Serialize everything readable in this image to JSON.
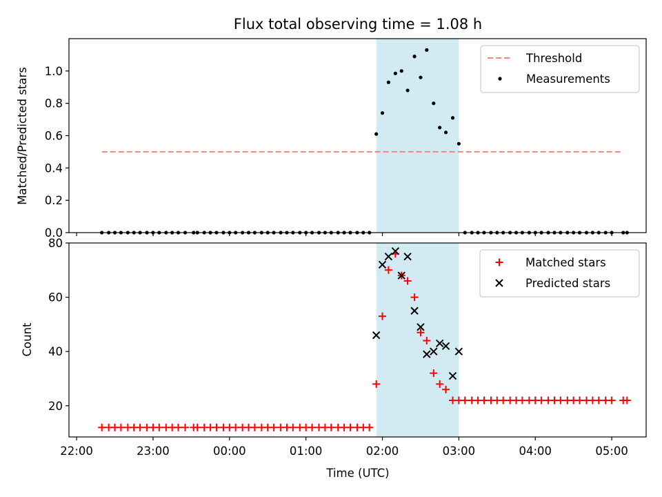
{
  "chart_data": {
    "title": "Flux total observing time = 1.08 h",
    "xlabel": "Time (UTC)",
    "x_unit": "hours relative to 00:00 UTC",
    "xlim": [
      -2.1,
      5.45
    ],
    "x_ticks": [
      {
        "value": -2,
        "label": "22:00"
      },
      {
        "value": -1,
        "label": "23:00"
      },
      {
        "value": 0,
        "label": "00:00"
      },
      {
        "value": 1,
        "label": "01:00"
      },
      {
        "value": 2,
        "label": "02:00"
      },
      {
        "value": 3,
        "label": "03:00"
      },
      {
        "value": 4,
        "label": "04:00"
      },
      {
        "value": 5,
        "label": "05:00"
      }
    ],
    "shaded_interval": [
      1.92,
      3.0
    ],
    "shade_color": "#add8e6",
    "panels": [
      {
        "type": "scatter",
        "ylabel": "Matched/Predicted stars",
        "ylim": [
          0,
          1.2
        ],
        "y_ticks": [
          0.0,
          0.2,
          0.4,
          0.6,
          0.8,
          1.0
        ],
        "threshold": {
          "name": "Threshold",
          "value": 0.5,
          "x_range": [
            -1.67,
            5.15
          ],
          "color": "#ff7f7f"
        },
        "series": [
          {
            "name": "Measurements",
            "color": "#000000",
            "points": [
              [
                -1.67,
                0
              ],
              [
                -1.58,
                0
              ],
              [
                -1.5,
                0
              ],
              [
                -1.42,
                0
              ],
              [
                -1.33,
                0
              ],
              [
                -1.25,
                0
              ],
              [
                -1.17,
                0
              ],
              [
                -1.08,
                0
              ],
              [
                -1.0,
                0
              ],
              [
                -0.92,
                0
              ],
              [
                -0.83,
                0
              ],
              [
                -0.75,
                0
              ],
              [
                -0.67,
                0
              ],
              [
                -0.58,
                0
              ],
              [
                -0.47,
                0
              ],
              [
                -0.42,
                0
              ],
              [
                -0.33,
                0
              ],
              [
                -0.25,
                0
              ],
              [
                -0.17,
                0
              ],
              [
                -0.08,
                0
              ],
              [
                0.0,
                0
              ],
              [
                0.08,
                0
              ],
              [
                0.17,
                0
              ],
              [
                0.25,
                0
              ],
              [
                0.33,
                0
              ],
              [
                0.42,
                0
              ],
              [
                0.5,
                0
              ],
              [
                0.58,
                0
              ],
              [
                0.67,
                0
              ],
              [
                0.75,
                0
              ],
              [
                0.83,
                0
              ],
              [
                0.92,
                0
              ],
              [
                1.0,
                0
              ],
              [
                1.08,
                0
              ],
              [
                1.17,
                0
              ],
              [
                1.25,
                0
              ],
              [
                1.33,
                0
              ],
              [
                1.42,
                0
              ],
              [
                1.5,
                0
              ],
              [
                1.58,
                0
              ],
              [
                1.67,
                0
              ],
              [
                1.75,
                0
              ],
              [
                1.83,
                0
              ],
              [
                1.92,
                0.61
              ],
              [
                2.0,
                0.74
              ],
              [
                2.08,
                0.93
              ],
              [
                2.17,
                0.985
              ],
              [
                2.25,
                1.0
              ],
              [
                2.33,
                0.88
              ],
              [
                2.42,
                1.09
              ],
              [
                2.5,
                0.96
              ],
              [
                2.58,
                1.13
              ],
              [
                2.67,
                0.8
              ],
              [
                2.75,
                0.65
              ],
              [
                2.83,
                0.62
              ],
              [
                2.92,
                0.71
              ],
              [
                3.0,
                0.55
              ],
              [
                3.08,
                0
              ],
              [
                3.17,
                0
              ],
              [
                3.25,
                0
              ],
              [
                3.33,
                0
              ],
              [
                3.42,
                0
              ],
              [
                3.5,
                0
              ],
              [
                3.58,
                0
              ],
              [
                3.67,
                0
              ],
              [
                3.75,
                0
              ],
              [
                3.83,
                0
              ],
              [
                3.92,
                0
              ],
              [
                4.0,
                0
              ],
              [
                4.08,
                0
              ],
              [
                4.17,
                0
              ],
              [
                4.25,
                0
              ],
              [
                4.33,
                0
              ],
              [
                4.42,
                0
              ],
              [
                4.5,
                0
              ],
              [
                4.58,
                0
              ],
              [
                4.67,
                0
              ],
              [
                4.75,
                0
              ],
              [
                4.83,
                0
              ],
              [
                4.92,
                0
              ],
              [
                5.0,
                0
              ],
              [
                5.15,
                0
              ],
              [
                5.2,
                0
              ]
            ]
          }
        ],
        "legend": {
          "position": "upper right",
          "entries": [
            "Threshold",
            "Measurements"
          ]
        }
      },
      {
        "type": "scatter",
        "ylabel": "Count",
        "ylim": [
          8.5,
          80
        ],
        "y_ticks": [
          20,
          40,
          60,
          80
        ],
        "series": [
          {
            "name": "Matched stars",
            "color": "#ff0000",
            "marker": "+",
            "points": [
              [
                -1.67,
                12
              ],
              [
                -1.58,
                12
              ],
              [
                -1.5,
                12
              ],
              [
                -1.42,
                12
              ],
              [
                -1.33,
                12
              ],
              [
                -1.25,
                12
              ],
              [
                -1.17,
                12
              ],
              [
                -1.08,
                12
              ],
              [
                -1.0,
                12
              ],
              [
                -0.92,
                12
              ],
              [
                -0.83,
                12
              ],
              [
                -0.75,
                12
              ],
              [
                -0.67,
                12
              ],
              [
                -0.58,
                12
              ],
              [
                -0.47,
                12
              ],
              [
                -0.42,
                12
              ],
              [
                -0.33,
                12
              ],
              [
                -0.25,
                12
              ],
              [
                -0.17,
                12
              ],
              [
                -0.08,
                12
              ],
              [
                0.0,
                12
              ],
              [
                0.08,
                12
              ],
              [
                0.17,
                12
              ],
              [
                0.25,
                12
              ],
              [
                0.33,
                12
              ],
              [
                0.42,
                12
              ],
              [
                0.5,
                12
              ],
              [
                0.58,
                12
              ],
              [
                0.67,
                12
              ],
              [
                0.75,
                12
              ],
              [
                0.83,
                12
              ],
              [
                0.92,
                12
              ],
              [
                1.0,
                12
              ],
              [
                1.08,
                12
              ],
              [
                1.17,
                12
              ],
              [
                1.25,
                12
              ],
              [
                1.33,
                12
              ],
              [
                1.42,
                12
              ],
              [
                1.5,
                12
              ],
              [
                1.58,
                12
              ],
              [
                1.67,
                12
              ],
              [
                1.75,
                12
              ],
              [
                1.83,
                12
              ],
              [
                1.92,
                28
              ],
              [
                2.0,
                53
              ],
              [
                2.08,
                70
              ],
              [
                2.17,
                76
              ],
              [
                2.25,
                68
              ],
              [
                2.33,
                66
              ],
              [
                2.42,
                60
              ],
              [
                2.5,
                47
              ],
              [
                2.58,
                44
              ],
              [
                2.67,
                32
              ],
              [
                2.75,
                28
              ],
              [
                2.83,
                26
              ],
              [
                2.92,
                22
              ],
              [
                3.0,
                22
              ],
              [
                3.08,
                22
              ],
              [
                3.17,
                22
              ],
              [
                3.25,
                22
              ],
              [
                3.33,
                22
              ],
              [
                3.42,
                22
              ],
              [
                3.5,
                22
              ],
              [
                3.58,
                22
              ],
              [
                3.67,
                22
              ],
              [
                3.75,
                22
              ],
              [
                3.83,
                22
              ],
              [
                3.92,
                22
              ],
              [
                4.0,
                22
              ],
              [
                4.08,
                22
              ],
              [
                4.17,
                22
              ],
              [
                4.25,
                22
              ],
              [
                4.33,
                22
              ],
              [
                4.42,
                22
              ],
              [
                4.5,
                22
              ],
              [
                4.58,
                22
              ],
              [
                4.67,
                22
              ],
              [
                4.75,
                22
              ],
              [
                4.83,
                22
              ],
              [
                4.92,
                22
              ],
              [
                5.0,
                22
              ],
              [
                5.15,
                22
              ],
              [
                5.2,
                22
              ]
            ]
          },
          {
            "name": "Predicted stars",
            "color": "#000000",
            "marker": "x",
            "points": [
              [
                1.92,
                46
              ],
              [
                2.0,
                72
              ],
              [
                2.08,
                75
              ],
              [
                2.17,
                77
              ],
              [
                2.25,
                68
              ],
              [
                2.33,
                75
              ],
              [
                2.42,
                55
              ],
              [
                2.5,
                49
              ],
              [
                2.58,
                39
              ],
              [
                2.67,
                40
              ],
              [
                2.75,
                43
              ],
              [
                2.83,
                42
              ],
              [
                2.92,
                31
              ],
              [
                3.0,
                40
              ]
            ]
          }
        ],
        "legend": {
          "position": "upper right",
          "entries": [
            "Matched stars",
            "Predicted stars"
          ]
        }
      }
    ]
  }
}
